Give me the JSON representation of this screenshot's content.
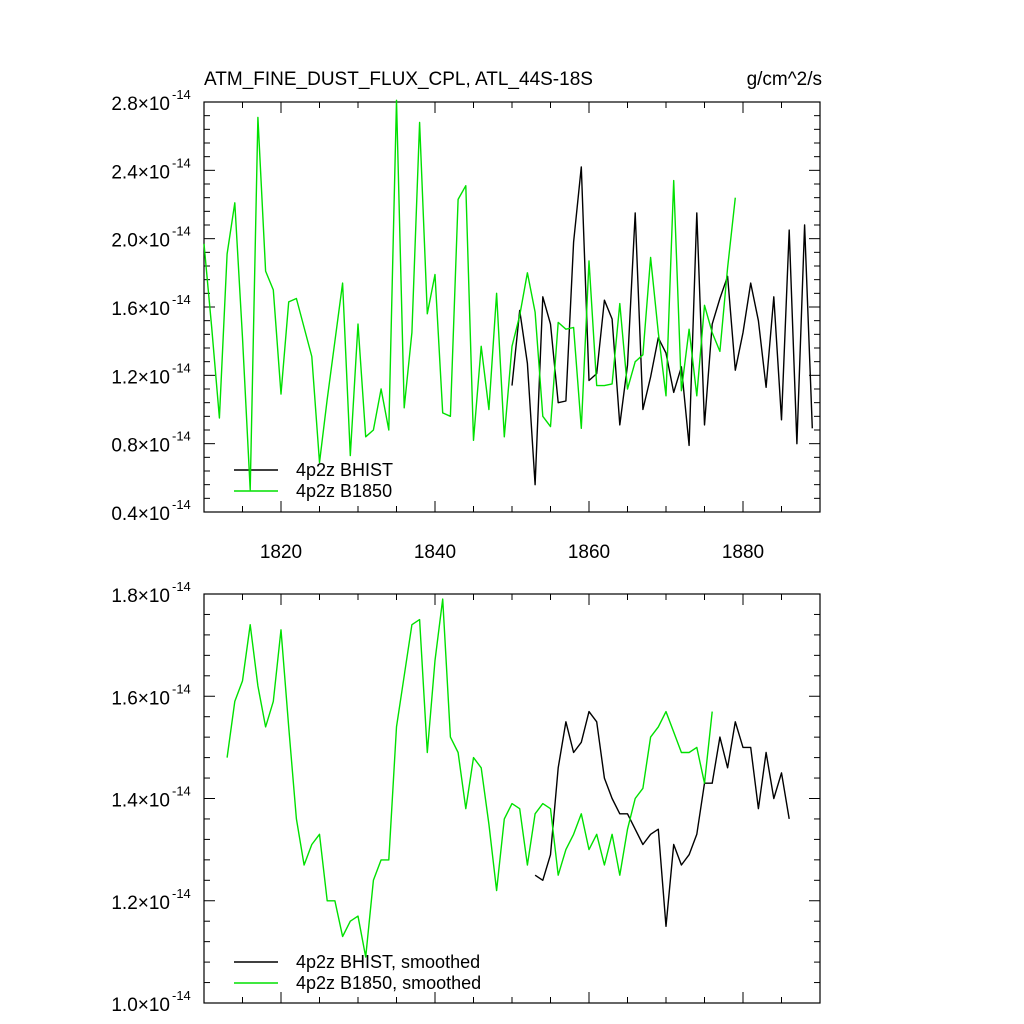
{
  "header": {
    "title": "ATM_FINE_DUST_FLUX_CPL, ATL_44S-18S",
    "units": "g/cm^2/s"
  },
  "colors": {
    "bhist": "#000000",
    "b1850": "#00e000",
    "axis": "#000000"
  },
  "chart_data": [
    {
      "type": "line",
      "panel": "top",
      "x_ticks": [
        "1820",
        "1840",
        "1860",
        "1880"
      ],
      "xlim": [
        1810,
        1890
      ],
      "ylim": [
        0.4,
        2.8
      ],
      "y_ticks": [
        0.4,
        0.8,
        1.2,
        1.6,
        2.0,
        2.4,
        2.8
      ],
      "y_tick_labels": {
        "mantissas": [
          "0.4",
          "0.8",
          "1.2",
          "1.6",
          "2.0",
          "2.4",
          "2.8"
        ],
        "base": "×10",
        "exponent": "-14"
      },
      "legend_position": "bottom-left",
      "series": [
        {
          "name": "4p2z BHIST",
          "color": "#000000",
          "x": [
            1850,
            1851,
            1852,
            1853,
            1854,
            1855,
            1856,
            1857,
            1858,
            1859,
            1860,
            1861,
            1862,
            1863,
            1864,
            1865,
            1866,
            1867,
            1868,
            1869,
            1870,
            1871,
            1872,
            1873,
            1874,
            1875,
            1876,
            1877,
            1878,
            1879,
            1880,
            1881,
            1882,
            1883,
            1884,
            1885,
            1886,
            1887,
            1888,
            1889
          ],
          "values": [
            1.14,
            1.58,
            1.27,
            0.56,
            1.66,
            1.5,
            1.04,
            1.05,
            1.98,
            2.42,
            1.17,
            1.21,
            1.64,
            1.53,
            0.91,
            1.26,
            2.15,
            1.0,
            1.19,
            1.42,
            1.33,
            1.1,
            1.25,
            0.79,
            2.15,
            0.91,
            1.5,
            1.65,
            1.78,
            1.23,
            1.45,
            1.74,
            1.52,
            1.13,
            1.66,
            0.94,
            2.05,
            0.8,
            2.08,
            0.89
          ]
        },
        {
          "name": "4p2z B1850",
          "color": "#00e000",
          "x": [
            1810,
            1811,
            1812,
            1813,
            1814,
            1815,
            1816,
            1817,
            1818,
            1819,
            1820,
            1821,
            1822,
            1823,
            1824,
            1825,
            1826,
            1827,
            1828,
            1829,
            1830,
            1831,
            1832,
            1833,
            1834,
            1835,
            1836,
            1837,
            1838,
            1839,
            1840,
            1841,
            1842,
            1843,
            1844,
            1845,
            1846,
            1847,
            1848,
            1849,
            1850,
            1851,
            1852,
            1853,
            1854,
            1855,
            1856,
            1857,
            1858,
            1859,
            1860,
            1861,
            1862,
            1863,
            1864,
            1865,
            1866,
            1867,
            1868,
            1869,
            1870,
            1871,
            1872,
            1873,
            1874,
            1875,
            1876,
            1877,
            1878,
            1879
          ],
          "values": [
            1.97,
            1.48,
            0.95,
            1.91,
            2.21,
            1.42,
            0.53,
            2.71,
            1.81,
            1.7,
            1.09,
            1.63,
            1.65,
            1.48,
            1.31,
            0.69,
            1.06,
            1.4,
            1.74,
            0.73,
            1.5,
            0.84,
            0.88,
            1.12,
            0.88,
            2.81,
            1.01,
            1.45,
            2.68,
            1.56,
            1.79,
            0.98,
            0.96,
            2.23,
            2.31,
            0.82,
            1.37,
            1.0,
            1.68,
            0.84,
            1.37,
            1.55,
            1.8,
            1.57,
            0.96,
            0.9,
            1.51,
            1.47,
            1.48,
            0.89,
            1.87,
            1.14,
            1.14,
            1.15,
            1.62,
            1.12,
            1.28,
            1.32,
            1.89,
            1.45,
            1.08,
            2.34,
            1.11,
            1.47,
            1.08,
            1.61,
            1.45,
            1.34,
            1.83,
            2.24
          ]
        }
      ]
    },
    {
      "type": "line",
      "panel": "bottom",
      "xlim": [
        1810,
        1890
      ],
      "ylim": [
        1.0,
        1.8
      ],
      "y_ticks": [
        1.0,
        1.2,
        1.4,
        1.6,
        1.8
      ],
      "y_tick_labels": {
        "mantissas": [
          "1.0",
          "1.2",
          "1.4",
          "1.6",
          "1.8"
        ],
        "base": "×10",
        "exponent": "-14"
      },
      "legend_position": "bottom-left",
      "series": [
        {
          "name": "4p2z BHIST, smoothed",
          "color": "#000000",
          "x": [
            1853,
            1854,
            1855,
            1856,
            1857,
            1858,
            1859,
            1860,
            1861,
            1862,
            1863,
            1864,
            1865,
            1866,
            1867,
            1868,
            1869,
            1870,
            1871,
            1872,
            1873,
            1874,
            1875,
            1876,
            1877,
            1878,
            1879,
            1880,
            1881,
            1882,
            1883,
            1884,
            1885,
            1886
          ],
          "values": [
            1.25,
            1.24,
            1.29,
            1.46,
            1.55,
            1.49,
            1.51,
            1.57,
            1.55,
            1.44,
            1.4,
            1.37,
            1.37,
            1.34,
            1.31,
            1.33,
            1.34,
            1.15,
            1.31,
            1.27,
            1.29,
            1.33,
            1.43,
            1.43,
            1.52,
            1.46,
            1.55,
            1.5,
            1.5,
            1.38,
            1.49,
            1.4,
            1.45,
            1.36
          ]
        },
        {
          "name": "4p2z B1850, smoothed",
          "color": "#00e000",
          "x": [
            1813,
            1814,
            1815,
            1816,
            1817,
            1818,
            1819,
            1820,
            1821,
            1822,
            1823,
            1824,
            1825,
            1826,
            1827,
            1828,
            1829,
            1830,
            1831,
            1832,
            1833,
            1834,
            1835,
            1836,
            1837,
            1838,
            1839,
            1840,
            1841,
            1842,
            1843,
            1844,
            1845,
            1846,
            1847,
            1848,
            1849,
            1850,
            1851,
            1852,
            1853,
            1854,
            1855,
            1856,
            1857,
            1858,
            1859,
            1860,
            1861,
            1862,
            1863,
            1864,
            1865,
            1866,
            1867,
            1868,
            1869,
            1870,
            1871,
            1872,
            1873,
            1874,
            1875,
            1876
          ],
          "values": [
            1.48,
            1.59,
            1.63,
            1.74,
            1.62,
            1.54,
            1.59,
            1.73,
            1.54,
            1.36,
            1.27,
            1.31,
            1.33,
            1.2,
            1.2,
            1.13,
            1.16,
            1.17,
            1.09,
            1.24,
            1.28,
            1.28,
            1.54,
            1.64,
            1.74,
            1.75,
            1.49,
            1.67,
            1.79,
            1.52,
            1.49,
            1.38,
            1.48,
            1.46,
            1.35,
            1.22,
            1.36,
            1.39,
            1.38,
            1.27,
            1.37,
            1.39,
            1.38,
            1.25,
            1.3,
            1.33,
            1.37,
            1.3,
            1.33,
            1.27,
            1.33,
            1.25,
            1.34,
            1.4,
            1.42,
            1.52,
            1.54,
            1.57,
            1.53,
            1.49,
            1.49,
            1.5,
            1.43,
            1.57
          ]
        }
      ]
    }
  ]
}
